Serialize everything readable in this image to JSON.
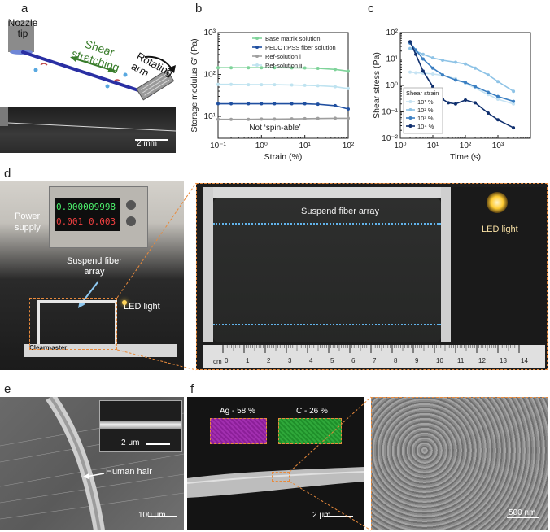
{
  "panels": {
    "a": {
      "letter": "a",
      "nozzle_line1": "Nozzle",
      "nozzle_line2": "tip",
      "shear_line1": "Shear",
      "shear_line2": "stretching",
      "rotating_line1": "Rotating",
      "rotating_line2": "arm",
      "scalebar": "2 mm"
    },
    "b": {
      "letter": "b"
    },
    "c": {
      "letter": "c"
    },
    "d": {
      "letter": "d",
      "power_line1": "Power",
      "power_line2": "supply",
      "display_top_left": "0.0000",
      "display_top_right": "09998",
      "display_bottom_left": "0.001",
      "display_bottom_right": "0.003",
      "suspend_line1": "Suspend fiber",
      "suspend_line2": "array",
      "led_light": "LED light",
      "ruler_brand": "Clearmaster",
      "zoom_suspend": "Suspend fiber array",
      "zoom_led": "LED light",
      "ruler_unit": "cm",
      "ruler_numbers": [
        "0",
        "1",
        "2",
        "3",
        "4",
        "5",
        "6",
        "7",
        "8",
        "9",
        "10",
        "11",
        "12",
        "13",
        "14"
      ]
    },
    "e": {
      "letter": "e",
      "inset_scalebar": "2 μm",
      "hair_label": "Human hair",
      "scalebar": "100 μm"
    },
    "f": {
      "letter": "f",
      "ag_label": "Ag - 58 %",
      "c_label": "C - 26 %",
      "scalebar": "2 μm",
      "zoom_scalebar": "500 nm"
    }
  },
  "chart_data": [
    {
      "type": "line",
      "xlabel": "Strain (%)",
      "ylabel": "Storage modulus G' (Pa)",
      "xscale": "log",
      "yscale": "log",
      "xlim": [
        0.1,
        100
      ],
      "ylim": [
        3,
        1000
      ],
      "xticks": [
        "10⁻¹",
        "10⁰",
        "10¹",
        "10²"
      ],
      "yticks": [
        "10¹",
        "10²",
        "10³"
      ],
      "legend_position": "top-right",
      "annotation": "Not ‘spin-able’",
      "series": [
        {
          "name": "Base matrix solution",
          "color": "#7fd39a",
          "marker": "circle",
          "x": [
            0.1,
            0.2,
            0.5,
            1,
            2,
            5,
            10,
            20,
            50,
            100
          ],
          "y": [
            145,
            145,
            145,
            145,
            145,
            144,
            143,
            140,
            132,
            120
          ]
        },
        {
          "name": "PEDOT:PSS fiber solution",
          "color": "#1f4fa0",
          "marker": "circle",
          "x": [
            0.1,
            0.2,
            0.5,
            1,
            2,
            5,
            10,
            20,
            50,
            100
          ],
          "y": [
            20,
            20,
            20,
            20,
            20,
            20,
            20,
            19.5,
            18,
            15
          ]
        },
        {
          "name": "Ref-solution i",
          "color": "#9e9e9e",
          "marker": "circle",
          "x": [
            0.1,
            0.2,
            0.5,
            1,
            2,
            5,
            10,
            20,
            50,
            100
          ],
          "y": [
            8.5,
            8.5,
            8.5,
            8.6,
            8.6,
            8.7,
            8.8,
            8.9,
            9,
            9
          ]
        },
        {
          "name": "Ref-solution ii",
          "color": "#bfe3f0",
          "marker": "circle",
          "x": [
            0.1,
            0.2,
            0.5,
            1,
            2,
            5,
            10,
            20,
            50,
            100
          ],
          "y": [
            58,
            58,
            57,
            57,
            57,
            56,
            55,
            54,
            51,
            46
          ]
        }
      ]
    },
    {
      "type": "line",
      "xlabel": "Time (s)",
      "ylabel": "Shear stress (Pa)",
      "xscale": "log",
      "yscale": "log",
      "xlim": [
        0.1,
        1000
      ],
      "ylim": [
        0.01,
        100
      ],
      "xticks": [
        "10⁰",
        "10¹",
        "10²",
        "10³"
      ],
      "yticks": [
        "10⁻²",
        "10⁻¹",
        "10⁰",
        "10¹",
        "10²"
      ],
      "legend_title": "Shear strain",
      "legend_position": "bottom-left",
      "series": [
        {
          "name": "10¹ %",
          "color": "#c6e3f3",
          "x": [
            0.2,
            0.3,
            0.5,
            1,
            2,
            5,
            10,
            20,
            50,
            100,
            300
          ],
          "y": [
            3.2,
            3.0,
            2.9,
            2.7,
            2.4,
            1.8,
            1.2,
            0.8,
            0.45,
            0.3,
            0.2
          ]
        },
        {
          "name": "10² %",
          "color": "#8ec3e6",
          "x": [
            0.2,
            0.3,
            0.5,
            1,
            2,
            5,
            10,
            20,
            50,
            100,
            300
          ],
          "y": [
            25,
            20,
            15,
            11,
            9,
            7.5,
            6.5,
            4.5,
            2.5,
            1.4,
            0.6
          ]
        },
        {
          "name": "10³ %",
          "color": "#3b7fc2",
          "x": [
            0.2,
            0.3,
            0.5,
            1,
            2,
            5,
            10,
            20,
            50,
            100,
            300
          ],
          "y": [
            40,
            22,
            10,
            4.5,
            2.5,
            1.6,
            1.3,
            0.9,
            0.55,
            0.38,
            0.25
          ]
        },
        {
          "name": "10⁴ %",
          "color": "#0f2f6e",
          "x": [
            0.2,
            0.3,
            0.5,
            1,
            2,
            3,
            5,
            10,
            20,
            50,
            100,
            300
          ],
          "y": [
            45,
            15,
            3.5,
            0.9,
            0.3,
            0.22,
            0.2,
            0.28,
            0.22,
            0.09,
            0.05,
            0.025
          ]
        }
      ]
    }
  ]
}
